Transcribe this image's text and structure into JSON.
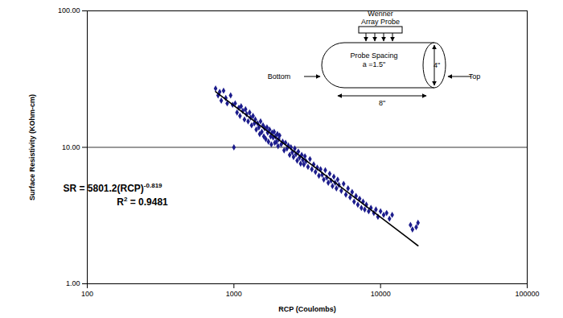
{
  "chart_data": {
    "type": "scatter",
    "x_label": "RCP (Coulombs)",
    "y_label": "Surface Resistivity (KOhm-cm)",
    "log": true,
    "grid": "y",
    "xlim": [
      100,
      100000
    ],
    "xticks": [
      100,
      1000,
      10000,
      100000
    ],
    "ylim": [
      1,
      100
    ],
    "yticks": [
      {
        "value": 1,
        "label": "1.00"
      },
      {
        "value": 10,
        "label": "10.00"
      },
      {
        "value": 100,
        "label": "100.00"
      }
    ],
    "series": [
      {
        "type": "scatter",
        "color": "#1c1c8c",
        "marker": "diamond",
        "x": [
          750,
          780,
          800,
          820,
          850,
          880,
          900,
          950,
          980,
          1000,
          1020,
          1050,
          1080,
          1100,
          1120,
          1150,
          1180,
          1200,
          1220,
          1250,
          1280,
          1300,
          1320,
          1350,
          1380,
          1400,
          1420,
          1450,
          1480,
          1500,
          1520,
          1550,
          1580,
          1600,
          1620,
          1650,
          1680,
          1700,
          1720,
          1750,
          1780,
          1800,
          1820,
          1850,
          1880,
          1900,
          1920,
          1950,
          1980,
          2000,
          2020,
          2050,
          2100,
          2150,
          2200,
          2250,
          2300,
          2350,
          2400,
          2450,
          2500,
          2550,
          2600,
          2650,
          2700,
          2750,
          2800,
          2850,
          2900,
          2950,
          3000,
          3050,
          3100,
          3200,
          3300,
          3400,
          3500,
          3600,
          3700,
          3800,
          3900,
          4000,
          4100,
          4200,
          4300,
          4400,
          4500,
          4600,
          4700,
          4800,
          4900,
          5000,
          5100,
          5200,
          5400,
          5600,
          5800,
          6000,
          6200,
          6400,
          6600,
          6800,
          7000,
          7200,
          7400,
          7600,
          7800,
          8000,
          8300,
          8600,
          9000,
          9300,
          9600,
          10000,
          10500,
          11000,
          11500,
          12000,
          16000,
          16500,
          17500,
          18000
        ],
        "values": [
          27,
          24,
          25.5,
          22,
          26,
          23,
          21,
          24,
          20.5,
          10,
          21,
          18,
          19.5,
          17,
          20,
          18.5,
          16,
          19,
          17.5,
          15.5,
          18,
          16.5,
          14.5,
          17,
          15,
          16,
          13.5,
          15,
          14,
          12.5,
          15.5,
          13,
          14.5,
          12,
          13.8,
          11.5,
          14,
          12.8,
          11,
          13.5,
          12,
          10.5,
          12.8,
          11.8,
          13,
          10.8,
          12,
          11,
          12.5,
          10.2,
          11.5,
          12.2,
          10.5,
          11,
          9.5,
          10.8,
          9.8,
          10.3,
          8.8,
          10,
          9.2,
          8.5,
          9.8,
          8.9,
          8,
          9.3,
          8.4,
          7.6,
          8.8,
          8.1,
          7.5,
          8.6,
          7.9,
          7.2,
          8.2,
          6.9,
          7.5,
          6.6,
          7.1,
          6.2,
          6.9,
          6.3,
          5.8,
          6.8,
          6,
          5.5,
          6.4,
          5.7,
          5.2,
          6.1,
          5.5,
          5,
          5.8,
          5.3,
          4.8,
          5.4,
          4.5,
          5,
          4.3,
          4.7,
          4,
          4.4,
          3.8,
          4.2,
          3.6,
          4,
          3.5,
          3.8,
          3.4,
          3.6,
          3.3,
          3.5,
          3.1,
          3.4,
          3.2,
          3.3,
          3,
          3.2,
          2.7,
          2.5,
          2.6,
          2.8
        ]
      },
      {
        "type": "line",
        "color": "#000000",
        "line_style": "solid",
        "x": [
          750,
          18000
        ],
        "values": [
          25.6,
          1.9
        ]
      }
    ],
    "annotations": [
      {
        "text": "SR = 5801.2(RCP)",
        "superscript": "-0.819"
      },
      {
        "text": "R",
        "superscript": "2",
        "after": " = 0.9481"
      }
    ],
    "inset": {
      "probe_title": [
        "Wenner",
        "Array Probe"
      ],
      "spacing": [
        "Probe Spacing",
        "a =1.5\""
      ],
      "diameter": "4\"",
      "length": "8\"",
      "left_end": "Bottom",
      "right_end": "Top"
    }
  }
}
